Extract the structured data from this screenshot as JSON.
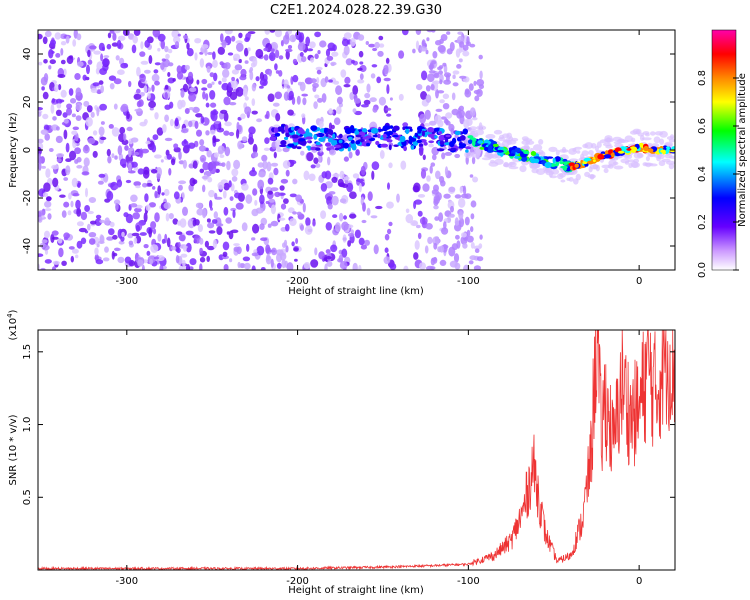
{
  "title": "C2E1.2024.028.22.39.G30",
  "chart_data": [
    {
      "type": "heatmap",
      "title": "C2E1.2024.028.22.39.G30",
      "xlabel": "Height of straight line (km)",
      "ylabel": "Frequency (Hz)",
      "xlim": [
        -352,
        21
      ],
      "ylim": [
        -50,
        50
      ],
      "x_ticks": [
        -300,
        -200,
        -100,
        0
      ],
      "y_ticks": [
        -40,
        -20,
        0,
        20,
        40
      ],
      "colorbar": {
        "label": "Normalized spectral amplitude",
        "range": [
          0.0,
          1.0
        ],
        "ticks": [
          0.0,
          0.2,
          0.4,
          0.6,
          0.8
        ],
        "colors": [
          "#ffffff",
          "#6600ff",
          "#0000ff",
          "#00ffff",
          "#00ff00",
          "#ffff00",
          "#ff8800",
          "#ff0000",
          "#ff00aa"
        ]
      },
      "ridge": {
        "description_values": "dominant frequency (Hz) vs height (km)",
        "x": [
          -210,
          -180,
          -150,
          -140,
          -100,
          -80,
          -60,
          -40,
          -30,
          -20,
          0,
          10,
          20
        ],
        "y": [
          6,
          4,
          6,
          5,
          4,
          0,
          -3,
          -7,
          -5,
          -2,
          1,
          0,
          0
        ]
      }
    },
    {
      "type": "line",
      "xlabel": "Height of straight line (km)",
      "ylabel": "SNR (10 * v/v)",
      "y_multiplier": "(x10^4)",
      "xlim": [
        -352,
        21
      ],
      "ylim": [
        0,
        1.65
      ],
      "x_ticks": [
        -300,
        -200,
        -100,
        0
      ],
      "y_ticks": [
        0.5,
        1.0,
        1.5
      ],
      "series": [
        {
          "color": "#ee3333",
          "x": [
            -352,
            -300,
            -250,
            -200,
            -150,
            -120,
            -100,
            -85,
            -75,
            -68,
            -62,
            -55,
            -48,
            -40,
            -33,
            -28,
            -25,
            -22,
            -20,
            -15,
            -10,
            -5,
            0,
            5,
            10,
            15,
            21
          ],
          "y": [
            0.01,
            0.01,
            0.01,
            0.01,
            0.02,
            0.03,
            0.04,
            0.1,
            0.2,
            0.4,
            0.72,
            0.25,
            0.06,
            0.1,
            0.35,
            0.8,
            1.65,
            0.9,
            1.2,
            0.85,
            1.3,
            1.05,
            1.1,
            1.4,
            1.2,
            1.5,
            1.4
          ]
        }
      ]
    }
  ]
}
